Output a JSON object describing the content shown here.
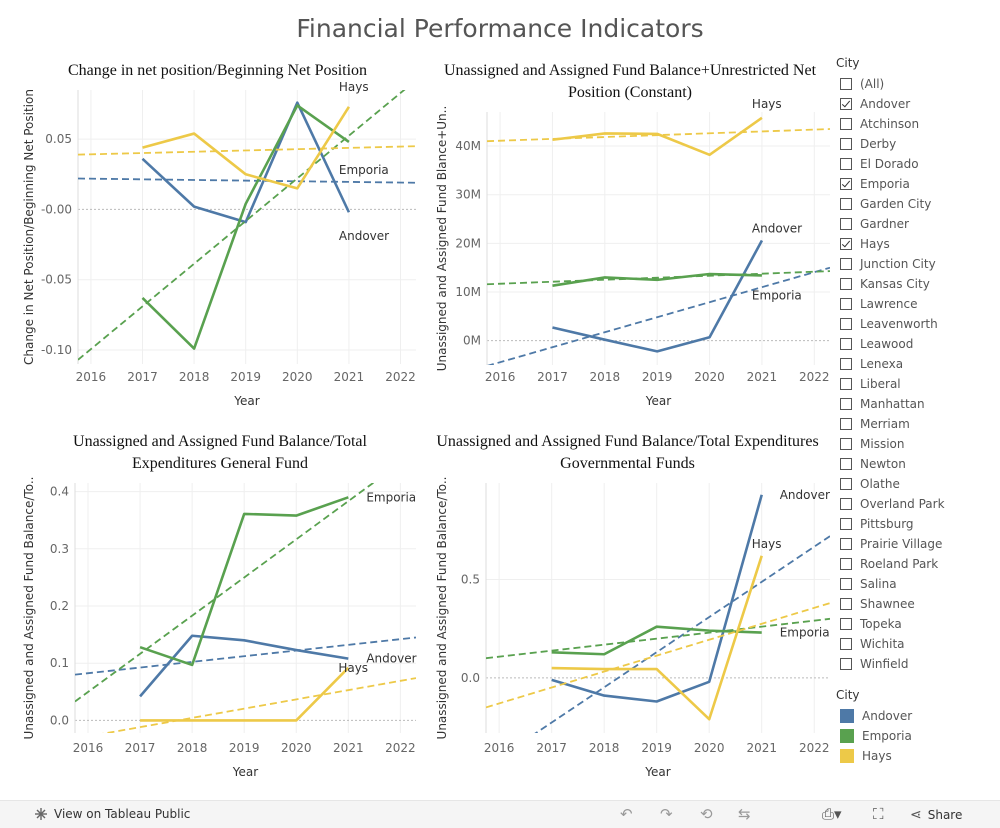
{
  "page_title": "Financial Performance Indicators",
  "colors": {
    "Andover": "#4e79a7",
    "Emporia": "#59a14f",
    "Hays": "#edc948"
  },
  "chart_data": [
    {
      "type": "line",
      "title": "Change in net position/Beginning Net Position",
      "xlabel": "Year",
      "ylabel": "Change in Net Position/Beginning Net Position",
      "x_ticks": [
        "2016",
        "2017",
        "2018",
        "2019",
        "2020",
        "2021",
        "2022"
      ],
      "xlim": [
        2015.75,
        2022.3
      ],
      "ylim": [
        -0.11,
        0.085
      ],
      "y_ticks": [
        {
          "value": -0.1,
          "label": "-0.10"
        },
        {
          "value": -0.05,
          "label": "-0.05"
        },
        {
          "value": 0.0,
          "label": "-0.00"
        },
        {
          "value": 0.05,
          "label": "0.05"
        }
      ],
      "series": [
        {
          "name": "Andover",
          "x": [
            2017,
            2018,
            2019,
            2020,
            2021
          ],
          "values": [
            0.036,
            0.002,
            -0.009,
            0.076,
            -0.002
          ],
          "trend": [
            0.022,
            0.019
          ],
          "label": "Andover"
        },
        {
          "name": "Emporia",
          "x": [
            2017,
            2018,
            2019,
            2020,
            2021
          ],
          "values": [
            -0.063,
            -0.099,
            0.004,
            0.074,
            0.048
          ],
          "trend": [
            -0.107,
            0.092
          ],
          "label": "Emporia"
        },
        {
          "name": "Hays",
          "x": [
            2017,
            2018,
            2019,
            2020,
            2021
          ],
          "values": [
            0.044,
            0.054,
            0.025,
            0.015,
            0.073
          ],
          "trend": [
            0.039,
            0.045
          ],
          "label": "Hays"
        }
      ]
    },
    {
      "type": "line",
      "title": "Unassigned and Assigned Fund Balance+Unrestricted Net Position (Constant)",
      "xlabel": "Year",
      "ylabel": "Unassigned and Assigned Fund Blance+Un..",
      "x_ticks": [
        "2016",
        "2017",
        "2018",
        "2019",
        "2020",
        "2021",
        "2022"
      ],
      "xlim": [
        2015.75,
        2022.3
      ],
      "ylim": [
        -5,
        47
      ],
      "y_ticks": [
        {
          "value": 0,
          "label": "0M"
        },
        {
          "value": 10,
          "label": "10M"
        },
        {
          "value": 20,
          "label": "20M"
        },
        {
          "value": 30,
          "label": "30M"
        },
        {
          "value": 40,
          "label": "40M"
        }
      ],
      "series": [
        {
          "name": "Andover",
          "x": [
            2017,
            2018,
            2019,
            2020,
            2021
          ],
          "values": [
            2.7,
            0.2,
            -2.2,
            0.7,
            20.6
          ],
          "trend": [
            -5.2,
            15.0
          ],
          "label": "Andover"
        },
        {
          "name": "Emporia",
          "x": [
            2017,
            2018,
            2019,
            2020,
            2021
          ],
          "values": [
            11.3,
            13.0,
            12.5,
            13.7,
            13.4
          ],
          "trend": [
            11.6,
            14.3
          ],
          "label": "Emporia"
        },
        {
          "name": "Hays",
          "x": [
            2017,
            2018,
            2019,
            2020,
            2021
          ],
          "values": [
            41.3,
            42.6,
            42.5,
            38.2,
            45.8
          ],
          "trend": [
            41.0,
            43.5
          ],
          "label": "Hays"
        }
      ]
    },
    {
      "type": "line",
      "title": "Unassigned and Assigned Fund Balance/Total Expenditures General Fund",
      "xlabel": "Year",
      "ylabel": "Unassigned and Assigned Fund Balance/To..",
      "x_ticks": [
        "2016",
        "2017",
        "2018",
        "2019",
        "2020",
        "2021",
        "2022"
      ],
      "xlim": [
        2015.75,
        2022.3
      ],
      "ylim": [
        -0.022,
        0.415
      ],
      "y_ticks": [
        {
          "value": 0.0,
          "label": "0.0"
        },
        {
          "value": 0.1,
          "label": "0.1"
        },
        {
          "value": 0.2,
          "label": "0.2"
        },
        {
          "value": 0.3,
          "label": "0.3"
        },
        {
          "value": 0.4,
          "label": "0.4"
        }
      ],
      "series": [
        {
          "name": "Andover",
          "x": [
            2017,
            2018,
            2019,
            2020,
            2021
          ],
          "values": [
            0.042,
            0.148,
            0.14,
            0.123,
            0.108
          ],
          "trend": [
            0.08,
            0.145
          ],
          "label": "Andover"
        },
        {
          "name": "Emporia",
          "x": [
            2017,
            2018,
            2019,
            2020,
            2021
          ],
          "values": [
            0.128,
            0.097,
            0.361,
            0.358,
            0.39
          ],
          "trend": [
            0.033,
            0.47
          ],
          "label": "Emporia"
        },
        {
          "name": "Hays",
          "x": [
            2017,
            2018,
            2019,
            2020,
            2021
          ],
          "values": [
            0.0,
            0.0,
            0.0,
            0.0,
            0.092
          ],
          "trend": [
            -0.032,
            0.074
          ],
          "label": "Hays"
        }
      ]
    },
    {
      "type": "line",
      "title": "Unassigned and Assigned Fund Balance/Total Expenditures Governmental Funds",
      "xlabel": "Year",
      "ylabel": "Unassigned and Assigned Fund Balance/To..",
      "x_ticks": [
        "2016",
        "2017",
        "2018",
        "2019",
        "2020",
        "2021",
        "2022"
      ],
      "xlim": [
        2015.75,
        2022.3
      ],
      "ylim": [
        -0.28,
        0.99
      ],
      "y_ticks": [
        {
          "value": 0.0,
          "label": "0.0"
        },
        {
          "value": 0.5,
          "label": "0.5"
        }
      ],
      "series": [
        {
          "name": "Andover",
          "x": [
            2017,
            2018,
            2019,
            2020,
            2021
          ],
          "values": [
            -0.01,
            -0.09,
            -0.12,
            -0.02,
            0.93
          ],
          "trend": [
            -0.45,
            0.72
          ],
          "label": "Andover"
        },
        {
          "name": "Emporia",
          "x": [
            2017,
            2018,
            2019,
            2020,
            2021
          ],
          "values": [
            0.13,
            0.12,
            0.26,
            0.24,
            0.23
          ],
          "trend": [
            0.1,
            0.3
          ],
          "label": "Emporia"
        },
        {
          "name": "Hays",
          "x": [
            2017,
            2018,
            2019,
            2020,
            2021
          ],
          "values": [
            0.05,
            0.045,
            0.045,
            -0.21,
            0.62
          ],
          "trend": [
            -0.15,
            0.38
          ],
          "label": "Hays"
        }
      ]
    }
  ],
  "filter": {
    "title": "City",
    "items": [
      {
        "label": "(All)",
        "checked": false
      },
      {
        "label": "Andover",
        "checked": true
      },
      {
        "label": "Atchinson",
        "checked": false
      },
      {
        "label": "Derby",
        "checked": false
      },
      {
        "label": "El Dorado",
        "checked": false
      },
      {
        "label": "Emporia",
        "checked": true
      },
      {
        "label": "Garden City",
        "checked": false
      },
      {
        "label": "Gardner",
        "checked": false
      },
      {
        "label": "Hays",
        "checked": true
      },
      {
        "label": "Junction City",
        "checked": false
      },
      {
        "label": "Kansas City",
        "checked": false
      },
      {
        "label": "Lawrence",
        "checked": false
      },
      {
        "label": "Leavenworth",
        "checked": false
      },
      {
        "label": "Leawood",
        "checked": false
      },
      {
        "label": "Lenexa",
        "checked": false
      },
      {
        "label": "Liberal",
        "checked": false
      },
      {
        "label": "Manhattan",
        "checked": false
      },
      {
        "label": "Merriam",
        "checked": false
      },
      {
        "label": "Mission",
        "checked": false
      },
      {
        "label": "Newton",
        "checked": false
      },
      {
        "label": "Olathe",
        "checked": false
      },
      {
        "label": "Overland Park",
        "checked": false
      },
      {
        "label": "Pittsburg",
        "checked": false
      },
      {
        "label": "Prairie Village",
        "checked": false
      },
      {
        "label": "Roeland Park",
        "checked": false
      },
      {
        "label": "Salina",
        "checked": false
      },
      {
        "label": "Shawnee",
        "checked": false
      },
      {
        "label": "Topeka",
        "checked": false
      },
      {
        "label": "Wichita",
        "checked": false
      },
      {
        "label": "Winfield",
        "checked": false
      }
    ]
  },
  "legend": {
    "title": "City",
    "items": [
      {
        "label": "Andover",
        "color": "#4e79a7"
      },
      {
        "label": "Emporia",
        "color": "#59a14f"
      },
      {
        "label": "Hays",
        "color": "#edc948"
      }
    ]
  },
  "footer": {
    "view_label": "View on Tableau Public",
    "share_label": "Share",
    "icons": [
      "undo-icon",
      "redo-icon",
      "revert-icon",
      "refresh-icon",
      "download-icon",
      "fullscreen-icon",
      "share-icon"
    ]
  }
}
